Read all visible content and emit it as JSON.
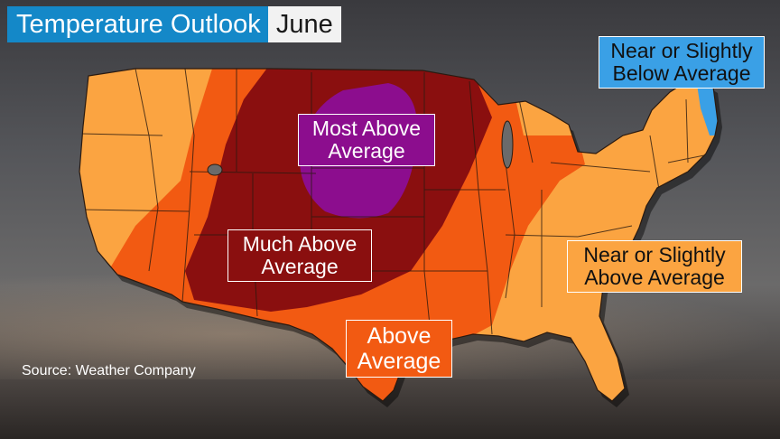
{
  "title": {
    "main": "Temperature Outlook",
    "month": "June"
  },
  "legend_labels": {
    "most_above": "Most Above Average",
    "much_above": "Much Above Average",
    "above": "Above Average",
    "near_above": "Near or Slightly Above Average",
    "near_below": "Near or Slightly Below Average"
  },
  "source": "Source: Weather Company",
  "colors": {
    "title_bg": "#1488c8",
    "most_above": "#8c0d8e",
    "much_above": "#8a0f0f",
    "above": "#f25a12",
    "near_above": "#fba441",
    "near_below": "#3aa0e6"
  },
  "regions": {
    "most_above": "Northern Plains (Dakotas, Nebraska)",
    "much_above": "Central Rockies, Plains and Upper Midwest",
    "above": "Great Lakes, Mississippi Valley, Texas, Southwest",
    "near_above": "West Coast, Northern Rockies, Southeast, Northeast",
    "near_below": "Maine"
  }
}
